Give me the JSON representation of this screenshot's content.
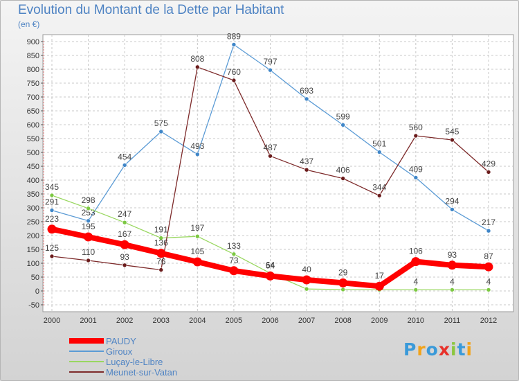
{
  "header": {
    "title": "Evolution du Montant de la Dette par Habitant",
    "subtitle": "(en €)"
  },
  "logo": {
    "text": "Proxiti",
    "letters": [
      {
        "ch": "P",
        "color": "#3a9ad9"
      },
      {
        "ch": "r",
        "color": "#f2a31a"
      },
      {
        "ch": "o",
        "color": "#3a9ad9"
      },
      {
        "ch": "x",
        "color": "#e8312a"
      },
      {
        "ch": "i",
        "color": "#8cc63f"
      },
      {
        "ch": "t",
        "color": "#3a9ad9"
      },
      {
        "ch": "i",
        "color": "#f2a31a"
      }
    ]
  },
  "chart_data": {
    "type": "line",
    "title": "Evolution du Montant de la Dette par Habitant",
    "ylabel": "(en €)",
    "xlabel": "",
    "x": [
      "2000",
      "2001",
      "2002",
      "2003",
      "2004",
      "2005",
      "2006",
      "2007",
      "2008",
      "2009",
      "2010",
      "2011",
      "2012"
    ],
    "ylim": [
      -50,
      900
    ],
    "yticks": [
      -50,
      0,
      50,
      100,
      150,
      200,
      250,
      300,
      350,
      400,
      450,
      500,
      550,
      600,
      650,
      700,
      750,
      800,
      850,
      900
    ],
    "grid": true,
    "legend_position": "bottom-left",
    "series": [
      {
        "name": "Giroux",
        "color": "#5b9bd5",
        "marker": "#3f86c8",
        "width": 1.3,
        "marker_r": 3,
        "label_dy": -8,
        "values": [
          291,
          253,
          454,
          575,
          493,
          889,
          797,
          693,
          599,
          501,
          409,
          294,
          217
        ]
      },
      {
        "name": "Luçay-le-Libre",
        "color": "#99d760",
        "marker": "#7cc842",
        "width": 1.3,
        "marker_r": 3,
        "label_dy": -8,
        "values": [
          345,
          298,
          247,
          191,
          197,
          133,
          64,
          7,
          5,
          4,
          4,
          4,
          4
        ],
        "labels": [
          "345",
          "298",
          "247",
          "191",
          "197",
          "133",
          "64",
          "",
          "",
          "",
          "4",
          "4",
          "4"
        ]
      },
      {
        "name": "Meunet-sur-Vatan",
        "color": "#7d2a2a",
        "marker": "#6b1c1c",
        "width": 1.3,
        "marker_r": 3,
        "label_dy": -8,
        "values": [
          125,
          110,
          93,
          76,
          808,
          760,
          487,
          437,
          406,
          344,
          560,
          545,
          429
        ],
        "labels": [
          "125",
          "110",
          "93",
          "76",
          "808",
          "760",
          "487",
          "437",
          "406",
          "344",
          "560",
          "545",
          "429"
        ]
      },
      {
        "name": "PAUDY",
        "color": "#ff0000",
        "marker": "#ff0000",
        "width": 8,
        "marker_r": 6.5,
        "label_dy": -11,
        "values": [
          223,
          195,
          167,
          136,
          105,
          73,
          54,
          40,
          29,
          17,
          106,
          93,
          87
        ]
      }
    ],
    "legend": [
      {
        "name": "PAUDY",
        "color": "#ff0000",
        "width": 8
      },
      {
        "name": "Giroux",
        "color": "#5b9bd5",
        "width": 1.5
      },
      {
        "name": "Luçay-le-Libre",
        "color": "#99d760",
        "width": 1.5
      },
      {
        "name": "Meunet-sur-Vatan",
        "color": "#7d2a2a",
        "width": 1.5
      }
    ]
  }
}
